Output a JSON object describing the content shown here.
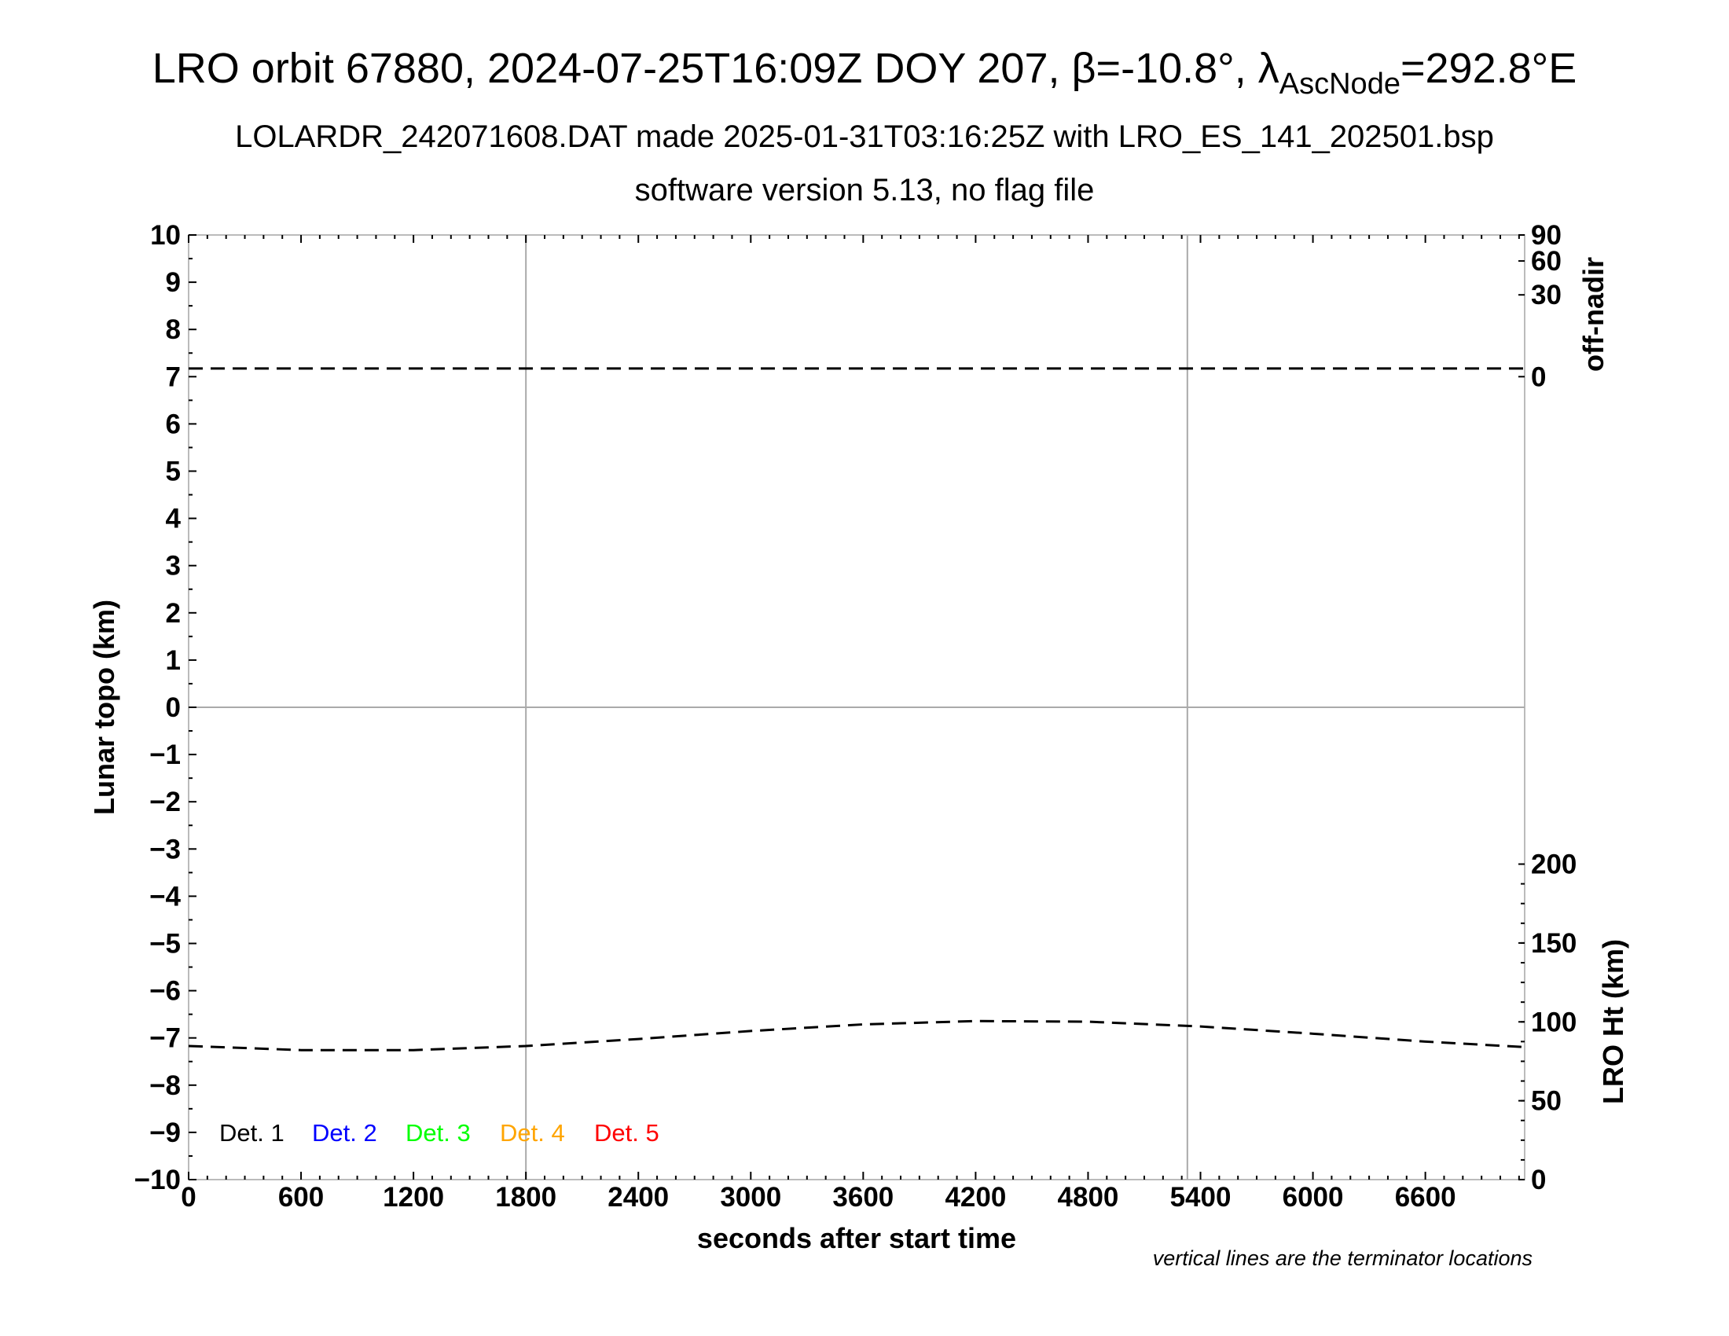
{
  "chart_data": {
    "type": "line",
    "title_main": "LRO orbit 67880, 2024-07-25T16:09Z DOY 207, β=-10.8°, λ",
    "title_sub": "AscNode",
    "title_end": "=292.8°E",
    "subtitle1": "LOLARDR_242071608.DAT made 2025-01-31T03:16:25Z with LRO_ES_141_202501.bsp",
    "subtitle2": "software version 5.13, no flag file",
    "xlabel": "seconds after start time",
    "ylabel": "Lunar topo (km)",
    "y2label_top": "off-nadir",
    "y2label_bottom": "LRO Ht (km)",
    "note": "vertical lines are the terminator locations",
    "xlim": [
      0,
      7130
    ],
    "ylim": [
      -10,
      10
    ],
    "xticks": [
      "0",
      "600",
      "1200",
      "1800",
      "2400",
      "3000",
      "3600",
      "4200",
      "4800",
      "5400",
      "6000",
      "6600"
    ],
    "yticks": [
      "10",
      "9",
      "8",
      "7",
      "6",
      "5",
      "4",
      "3",
      "2",
      "1",
      "0",
      "−1",
      "−2",
      "−3",
      "−4",
      "−5",
      "−6",
      "−7",
      "−8",
      "−9",
      "−10"
    ],
    "offnadir_ticks": [
      "0",
      "30",
      "60",
      "90"
    ],
    "height_ticks": [
      "0",
      "50",
      "100",
      "150",
      "200"
    ],
    "terminators": [
      1800,
      5330
    ],
    "legend": [
      {
        "label": "Det. 1",
        "color": "#000000"
      },
      {
        "label": "Det. 2",
        "color": "#0000ff"
      },
      {
        "label": "Det. 3",
        "color": "#00ff00"
      },
      {
        "label": "Det. 4",
        "color": "#ffa500"
      },
      {
        "label": "Det. 5",
        "color": "#ff0000"
      }
    ],
    "series": [
      {
        "name": "LRO Ht (km)",
        "x": [
          0,
          600,
          1200,
          1800,
          2400,
          3000,
          3600,
          4200,
          4800,
          5400,
          6000,
          6600,
          7130
        ],
        "values": [
          84.7,
          82.1,
          82.1,
          84.7,
          89.1,
          94.2,
          98.4,
          100.5,
          100.1,
          97.1,
          92.5,
          87.5,
          84.0
        ]
      },
      {
        "name": "off-nadir (deg)",
        "x": [
          0,
          1800,
          3600,
          5400,
          7130
        ],
        "values": [
          0.3,
          0.3,
          0.3,
          0.3,
          0.3
        ]
      }
    ]
  }
}
